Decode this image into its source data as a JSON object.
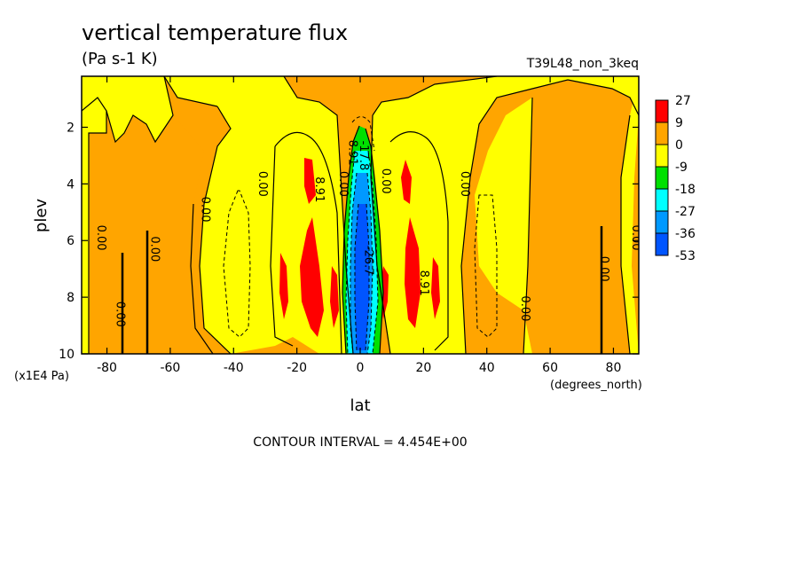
{
  "chart_data": {
    "type": "heatmap",
    "title": "vertical temperature flux",
    "subtitle": "(Pa s-1 K)",
    "run_label": "T39L48_non_3keq",
    "xlabel": "lat",
    "ylabel": "plev",
    "x_units": "(degrees_north)",
    "y_units": "(x1E4 Pa)",
    "footer": "CONTOUR INTERVAL = 4.454E+00",
    "xlim": [
      -88,
      88
    ],
    "ylim": [
      10,
      0.2
    ],
    "x_ticks": [
      {
        "value": -80,
        "label": "-80"
      },
      {
        "value": -60,
        "label": "-60"
      },
      {
        "value": -40,
        "label": "-40"
      },
      {
        "value": -20,
        "label": "-20"
      },
      {
        "value": 0,
        "label": "0"
      },
      {
        "value": 20,
        "label": "20"
      },
      {
        "value": 40,
        "label": "40"
      },
      {
        "value": 60,
        "label": "60"
      },
      {
        "value": 80,
        "label": "80"
      }
    ],
    "y_ticks": [
      {
        "value": 2,
        "label": "2"
      },
      {
        "value": 4,
        "label": "4"
      },
      {
        "value": 6,
        "label": "6"
      },
      {
        "value": 8,
        "label": "8"
      },
      {
        "value": 10,
        "label": "10"
      }
    ],
    "legend": {
      "placement": "right",
      "labels": [
        "27",
        "9",
        "0",
        "-9",
        "-18",
        "-27",
        "-36",
        "-53"
      ],
      "colors": [
        "#ff0000",
        "#ffa500",
        "#ffff00",
        "#00e000",
        "#00ffff",
        "#0099ff",
        "#0055ff"
      ]
    },
    "colors": {
      "red": "#ff0000",
      "orange": "#ffa500",
      "yellow": "#ffff00",
      "green": "#00e000",
      "cyan": "#00ffff",
      "blue1": "#0099ff",
      "blue2": "#0055ff"
    },
    "contour_labels": [
      {
        "x": -83,
        "y": 5.9,
        "text": "0.00"
      },
      {
        "x": -77,
        "y": 8.6,
        "text": "0.00"
      },
      {
        "x": -66,
        "y": 6.3,
        "text": "0.00"
      },
      {
        "x": -50,
        "y": 4.9,
        "text": "0.00"
      },
      {
        "x": -32,
        "y": 4.0,
        "text": "0.00"
      },
      {
        "x": -14,
        "y": 4.2,
        "text": "8.91"
      },
      {
        "x": -6.5,
        "y": 4.0,
        "text": "0.00"
      },
      {
        "x": -3.5,
        "y": 2.9,
        "text": "8.91"
      },
      {
        "x": 0,
        "y": 3.0,
        "text": "-17.8"
      },
      {
        "x": 1.5,
        "y": 6.7,
        "text": "-26.7"
      },
      {
        "x": 7,
        "y": 3.9,
        "text": "0.00"
      },
      {
        "x": 19,
        "y": 7.5,
        "text": "8.91"
      },
      {
        "x": 32,
        "y": 4.0,
        "text": "0.00"
      },
      {
        "x": 51,
        "y": 8.4,
        "text": "0.00"
      },
      {
        "x": 76,
        "y": 7.0,
        "text": "0.00"
      },
      {
        "x": 86,
        "y": 5.9,
        "text": "0.00"
      }
    ]
  }
}
